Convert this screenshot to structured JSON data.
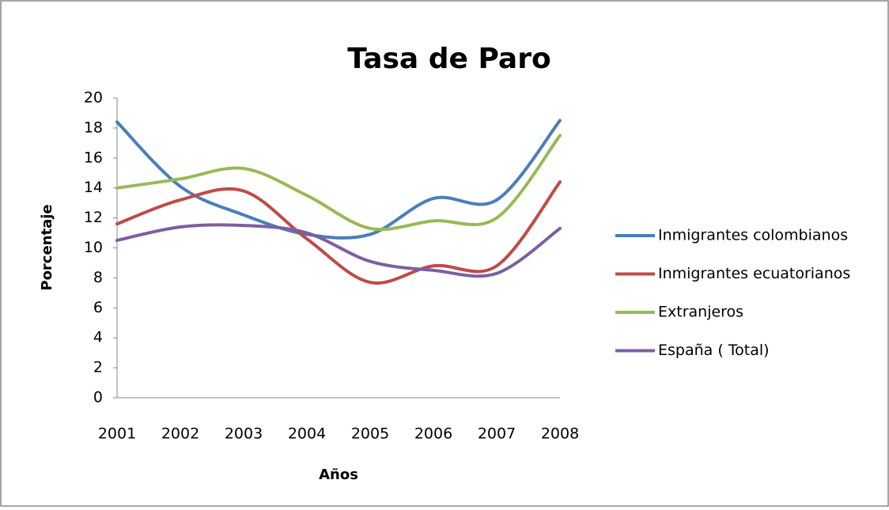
{
  "chart_data": {
    "type": "line",
    "title": "Tasa de Paro",
    "x_label": "Años",
    "y_label": "Porcentaje",
    "categories": [
      "2001",
      "2002",
      "2003",
      "2004",
      "2005",
      "2006",
      "2007",
      "2008"
    ],
    "series": [
      {
        "name": "Inmigrantes colombianos",
        "color": "#4a7ebb",
        "values": [
          18.4,
          14.1,
          12.2,
          10.9,
          10.9,
          13.3,
          13.2,
          18.5
        ]
      },
      {
        "name": "Inmigrantes ecuatorianos",
        "color": "#be4b48",
        "values": [
          11.6,
          13.2,
          13.8,
          10.6,
          7.7,
          8.8,
          8.8,
          14.4
        ]
      },
      {
        "name": "Extranjeros",
        "color": "#98b954",
        "values": [
          14.0,
          14.6,
          15.3,
          13.5,
          11.3,
          11.8,
          12.0,
          17.5
        ]
      },
      {
        "name": "España ( Total)",
        "color": "#7d5fa0",
        "values": [
          10.5,
          11.4,
          11.5,
          11.0,
          9.1,
          8.5,
          8.3,
          11.3
        ]
      }
    ],
    "ylim": [
      0,
      20
    ],
    "yticks": [
      0,
      2,
      4,
      6,
      8,
      10,
      12,
      14,
      16,
      18,
      20
    ],
    "grid": false,
    "smooth": true,
    "legend": "right"
  }
}
